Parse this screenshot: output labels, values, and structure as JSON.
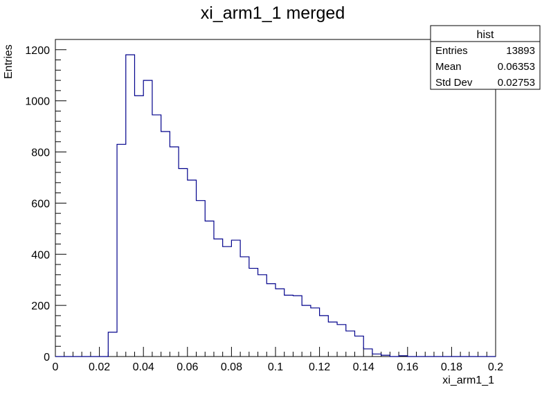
{
  "chart_data": {
    "type": "histogram",
    "title": "xi_arm1_1 merged",
    "xlabel": "xi_arm1_1",
    "ylabel": "Entries",
    "xlim": [
      0,
      0.2
    ],
    "ylim": [
      0,
      1240
    ],
    "x_ticks": [
      "0",
      "0.02",
      "0.04",
      "0.06",
      "0.08",
      "0.1",
      "0.12",
      "0.14",
      "0.16",
      "0.18",
      "0.2"
    ],
    "y_ticks": [
      "0",
      "200",
      "400",
      "600",
      "800",
      "1000",
      "1200"
    ],
    "bin_width": 0.004,
    "bin_start": 0,
    "values": [
      0,
      0,
      0,
      0,
      0,
      0,
      95,
      830,
      1180,
      1020,
      1080,
      945,
      880,
      820,
      735,
      690,
      610,
      530,
      460,
      430,
      455,
      390,
      345,
      320,
      285,
      265,
      240,
      238,
      200,
      190,
      160,
      135,
      125,
      100,
      80,
      30,
      10,
      5,
      0,
      3,
      0,
      0,
      0,
      0,
      0,
      0,
      0,
      0,
      0,
      0
    ],
    "line_color": "#00008b",
    "stats": {
      "name": "hist",
      "rows": [
        {
          "label": "Entries",
          "value": "13893"
        },
        {
          "label": "Mean",
          "value": "0.06353"
        },
        {
          "label": "Std Dev",
          "value": "0.02753"
        }
      ]
    }
  }
}
